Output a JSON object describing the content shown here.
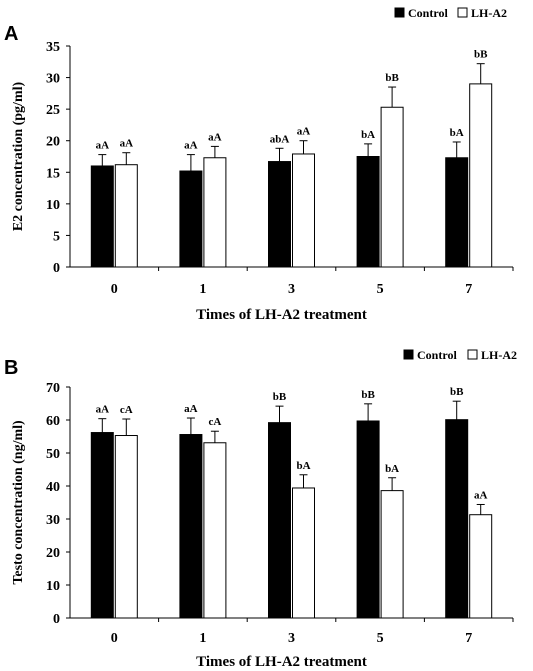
{
  "chart_data": [
    {
      "type": "bar",
      "panel": "A",
      "categories": [
        "0",
        "1",
        "3",
        "5",
        "7"
      ],
      "xlabel": "Times of LH-A2 treatment",
      "ylabel": "E2 concentration (pg/ml)",
      "ylim": [
        0,
        35
      ],
      "yticks": [
        "0",
        "5",
        "10",
        "15",
        "20",
        "25",
        "30",
        "35"
      ],
      "legend": "top-right",
      "series": [
        {
          "name": "Control",
          "color": "#000000",
          "values": [
            16.0,
            15.2,
            16.7,
            17.5,
            17.3
          ],
          "errors": [
            1.8,
            2.6,
            2.1,
            2.0,
            2.5
          ],
          "labels": [
            "aA",
            "aA",
            "abA",
            "bA",
            "bA"
          ]
        },
        {
          "name": "LH-A2",
          "color": "#ffffff",
          "values": [
            16.2,
            17.3,
            17.9,
            25.3,
            29.0
          ],
          "errors": [
            1.9,
            1.8,
            2.1,
            3.2,
            3.2
          ],
          "labels": [
            "aA",
            "aA",
            "aA",
            "bB",
            "bB"
          ]
        }
      ]
    },
    {
      "type": "bar",
      "panel": "B",
      "categories": [
        "0",
        "1",
        "3",
        "5",
        "7"
      ],
      "xlabel": "Times of LH-A2 treatment",
      "ylabel": "Testo concentration (ng/ml)",
      "ylim": [
        0,
        70
      ],
      "yticks": [
        "0",
        "10",
        "20",
        "30",
        "40",
        "50",
        "60",
        "70"
      ],
      "legend": "top-right",
      "series": [
        {
          "name": "Control",
          "color": "#000000",
          "values": [
            56.2,
            55.6,
            59.2,
            59.7,
            60.1
          ],
          "errors": [
            4.2,
            5.0,
            5.0,
            5.2,
            5.6
          ],
          "labels": [
            "aA",
            "aA",
            "bB",
            "bB",
            "bB"
          ]
        },
        {
          "name": "LH-A2",
          "color": "#ffffff",
          "values": [
            55.3,
            53.1,
            39.4,
            38.6,
            31.3
          ],
          "errors": [
            5.0,
            3.5,
            4.0,
            3.9,
            3.1
          ],
          "labels": [
            "cA",
            "cA",
            "bA",
            "bA",
            "aA"
          ]
        }
      ]
    }
  ]
}
